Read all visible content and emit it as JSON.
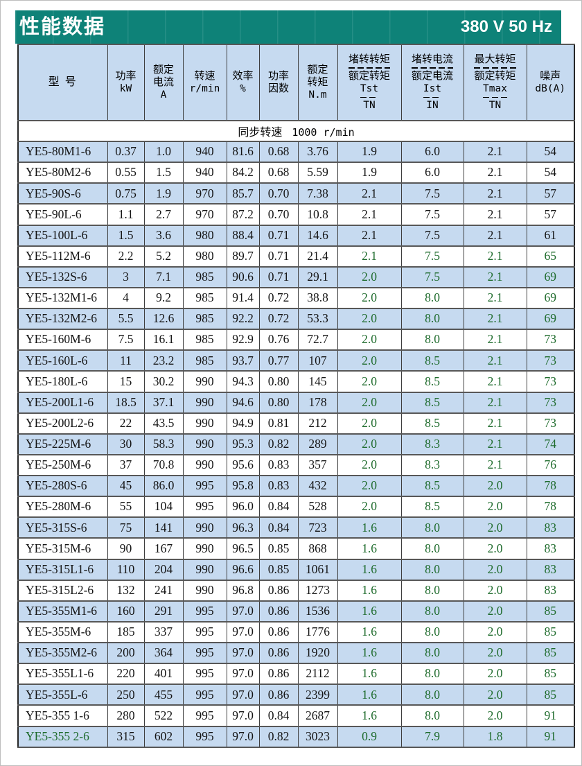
{
  "header": {
    "title": "性能数据",
    "voltage": "380 V 50 Hz"
  },
  "colors": {
    "banner_teal": "#0e8278",
    "row_blue": "#c6daf0",
    "green_text": "#1e6b2c"
  },
  "table": {
    "subheader_zh": "同步转速",
    "subheader_val": "1000 r/min",
    "columns": [
      {
        "type": "lines",
        "name": "model",
        "lines": [
          "型  号"
        ]
      },
      {
        "type": "lines",
        "name": "power-kw",
        "lines": [
          "功率",
          "kW"
        ]
      },
      {
        "type": "lines",
        "name": "rated-current",
        "lines": [
          "额定",
          "电流",
          "A"
        ]
      },
      {
        "type": "lines",
        "name": "speed-rpm",
        "lines": [
          "转速",
          "r/min"
        ]
      },
      {
        "type": "lines",
        "name": "efficiency",
        "lines": [
          "效率",
          "%"
        ]
      },
      {
        "type": "lines",
        "name": "power-factor",
        "lines": [
          "功率",
          "因数"
        ]
      },
      {
        "type": "lines",
        "name": "rated-torque",
        "lines": [
          "额定",
          "转矩",
          "N.m"
        ]
      },
      {
        "type": "fraction",
        "name": "locked-rotor-torque-ratio",
        "zh_num": "堵转转矩",
        "zh_den": "额定转矩",
        "sym_num": "Tst",
        "sym_den": "TN"
      },
      {
        "type": "fraction",
        "name": "locked-rotor-current-ratio",
        "zh_num": "堵转电流",
        "zh_den": "额定电流",
        "sym_num": "Ist",
        "sym_den": "IN"
      },
      {
        "type": "fraction",
        "name": "max-torque-ratio",
        "zh_num": "最大转矩",
        "zh_den": "额定转矩",
        "sym_num": "Tmax",
        "sym_den": "TN"
      },
      {
        "type": "lines",
        "name": "noise",
        "lines": [
          "噪声",
          "dB(A)"
        ]
      }
    ],
    "rows": [
      {
        "model": "YE5-80M1-6",
        "values": [
          "0.37",
          "1.0",
          "940",
          "81.6",
          "0.68",
          "3.76",
          "1.9",
          "6.0",
          "2.1",
          "54"
        ]
      },
      {
        "model": "YE5-80M2-6",
        "values": [
          "0.55",
          "1.5",
          "940",
          "84.2",
          "0.68",
          "5.59",
          "1.9",
          "6.0",
          "2.1",
          "54"
        ]
      },
      {
        "model": "YE5-90S-6",
        "values": [
          "0.75",
          "1.9",
          "970",
          "85.7",
          "0.70",
          "7.38",
          "2.1",
          "7.5",
          "2.1",
          "57"
        ]
      },
      {
        "model": "YE5-90L-6",
        "values": [
          "1.1",
          "2.7",
          "970",
          "87.2",
          "0.70",
          "10.8",
          "2.1",
          "7.5",
          "2.1",
          "57"
        ]
      },
      {
        "model": "YE5-100L-6",
        "values": [
          "1.5",
          "3.6",
          "980",
          "88.4",
          "0.71",
          "14.6",
          "2.1",
          "7.5",
          "2.1",
          "61"
        ]
      },
      {
        "model": "YE5-112M-6",
        "values": [
          "2.2",
          "5.2",
          "980",
          "89.7",
          "0.71",
          "21.4",
          "2.1",
          "7.5",
          "2.1",
          "65"
        ],
        "green_ratios": true
      },
      {
        "model": "YE5-132S-6",
        "values": [
          "3",
          "7.1",
          "985",
          "90.6",
          "0.71",
          "29.1",
          "2.0",
          "7.5",
          "2.1",
          "69"
        ],
        "green_ratios": true
      },
      {
        "model": "YE5-132M1-6",
        "values": [
          "4",
          "9.2",
          "985",
          "91.4",
          "0.72",
          "38.8",
          "2.0",
          "8.0",
          "2.1",
          "69"
        ],
        "green_ratios": true
      },
      {
        "model": "YE5-132M2-6",
        "values": [
          "5.5",
          "12.6",
          "985",
          "92.2",
          "0.72",
          "53.3",
          "2.0",
          "8.0",
          "2.1",
          "69"
        ],
        "green_ratios": true
      },
      {
        "model": "YE5-160M-6",
        "values": [
          "7.5",
          "16.1",
          "985",
          "92.9",
          "0.76",
          "72.7",
          "2.0",
          "8.0",
          "2.1",
          "73"
        ],
        "green_ratios": true
      },
      {
        "model": "YE5-160L-6",
        "values": [
          "11",
          "23.2",
          "985",
          "93.7",
          "0.77",
          "107",
          "2.0",
          "8.5",
          "2.1",
          "73"
        ],
        "green_ratios": true
      },
      {
        "model": "YE5-180L-6",
        "values": [
          "15",
          "30.2",
          "990",
          "94.3",
          "0.80",
          "145",
          "2.0",
          "8.5",
          "2.1",
          "73"
        ],
        "green_ratios": true
      },
      {
        "model": "YE5-200L1-6",
        "values": [
          "18.5",
          "37.1",
          "990",
          "94.6",
          "0.80",
          "178",
          "2.0",
          "8.5",
          "2.1",
          "73"
        ],
        "green_ratios": true
      },
      {
        "model": "YE5-200L2-6",
        "values": [
          "22",
          "43.5",
          "990",
          "94.9",
          "0.81",
          "212",
          "2.0",
          "8.5",
          "2.1",
          "73"
        ],
        "green_ratios": true
      },
      {
        "model": "YE5-225M-6",
        "values": [
          "30",
          "58.3",
          "990",
          "95.3",
          "0.82",
          "289",
          "2.0",
          "8.3",
          "2.1",
          "74"
        ],
        "green_ratios": true
      },
      {
        "model": "YE5-250M-6",
        "values": [
          "37",
          "70.8",
          "990",
          "95.6",
          "0.83",
          "357",
          "2.0",
          "8.3",
          "2.1",
          "76"
        ],
        "green_ratios": true
      },
      {
        "model": "YE5-280S-6",
        "values": [
          "45",
          "86.0",
          "995",
          "95.8",
          "0.83",
          "432",
          "2.0",
          "8.5",
          "2.0",
          "78"
        ],
        "green_ratios": true
      },
      {
        "model": "YE5-280M-6",
        "values": [
          "55",
          "104",
          "995",
          "96.0",
          "0.84",
          "528",
          "2.0",
          "8.5",
          "2.0",
          "78"
        ],
        "green_ratios": true
      },
      {
        "model": "YE5-315S-6",
        "values": [
          "75",
          "141",
          "990",
          "96.3",
          "0.84",
          "723",
          "1.6",
          "8.0",
          "2.0",
          "83"
        ],
        "green_ratios": true
      },
      {
        "model": "YE5-315M-6",
        "values": [
          "90",
          "167",
          "990",
          "96.5",
          "0.85",
          "868",
          "1.6",
          "8.0",
          "2.0",
          "83"
        ],
        "green_ratios": true
      },
      {
        "model": "YE5-315L1-6",
        "values": [
          "110",
          "204",
          "990",
          "96.6",
          "0.85",
          "1061",
          "1.6",
          "8.0",
          "2.0",
          "83"
        ],
        "green_ratios": true
      },
      {
        "model": "YE5-315L2-6",
        "values": [
          "132",
          "241",
          "990",
          "96.8",
          "0.86",
          "1273",
          "1.6",
          "8.0",
          "2.0",
          "83"
        ],
        "green_ratios": true
      },
      {
        "model": "YE5-355M1-6",
        "values": [
          "160",
          "291",
          "995",
          "97.0",
          "0.86",
          "1536",
          "1.6",
          "8.0",
          "2.0",
          "85"
        ],
        "green_ratios": true
      },
      {
        "model": "YE5-355M-6",
        "values": [
          "185",
          "337",
          "995",
          "97.0",
          "0.86",
          "1776",
          "1.6",
          "8.0",
          "2.0",
          "85"
        ],
        "green_ratios": true
      },
      {
        "model": "YE5-355M2-6",
        "values": [
          "200",
          "364",
          "995",
          "97.0",
          "0.86",
          "1920",
          "1.6",
          "8.0",
          "2.0",
          "85"
        ],
        "green_ratios": true
      },
      {
        "model": "YE5-355L1-6",
        "values": [
          "220",
          "401",
          "995",
          "97.0",
          "0.86",
          "2112",
          "1.6",
          "8.0",
          "2.0",
          "85"
        ],
        "green_ratios": true
      },
      {
        "model": "YE5-355L-6",
        "values": [
          "250",
          "455",
          "995",
          "97.0",
          "0.86",
          "2399",
          "1.6",
          "8.0",
          "2.0",
          "85"
        ],
        "green_ratios": true
      },
      {
        "model": "YE5-355 1-6",
        "values": [
          "280",
          "522",
          "995",
          "97.0",
          "0.84",
          "2687",
          "1.6",
          "8.0",
          "2.0",
          "91"
        ],
        "green_ratios": true
      },
      {
        "model": "YE5-355 2-6",
        "values": [
          "315",
          "602",
          "995",
          "97.0",
          "0.82",
          "3023",
          "0.9",
          "7.9",
          "1.8",
          "91"
        ],
        "green_ratios": true,
        "green_model": true
      }
    ]
  }
}
